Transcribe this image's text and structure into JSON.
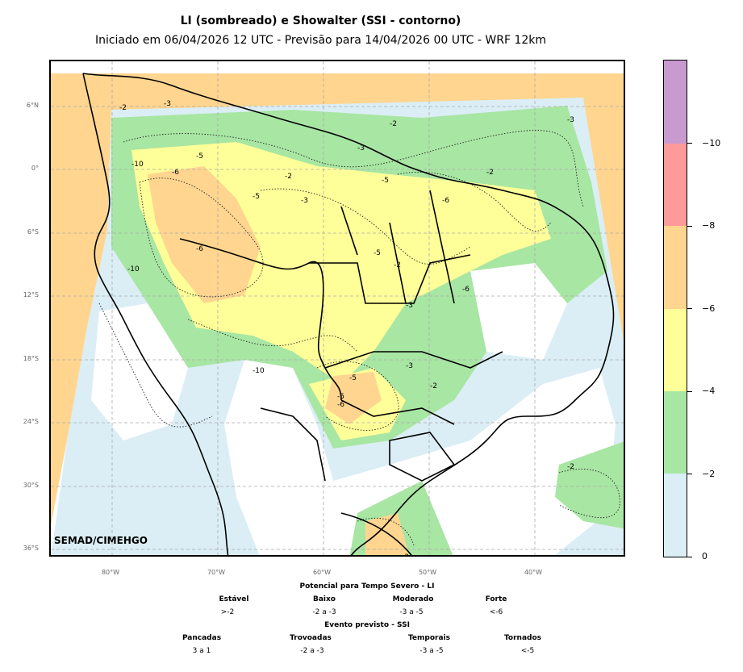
{
  "title": "LI (sombreado) e Showalter (SSI - contorno)",
  "subtitle": "Iniciado em 06/04/2026 12 UTC - Previsão para 14/04/2026 00 UTC - WRF 12km",
  "credit": "SEMAD/CIMEHGO",
  "lat_labels": [
    "6°N",
    "0°",
    "6°S",
    "12°S",
    "18°S",
    "24°S",
    "30°S",
    "36°S"
  ],
  "lon_labels": [
    "80°W",
    "70°W",
    "60°W",
    "50°W",
    "40°W"
  ],
  "colorbar": {
    "ticks": [
      "0",
      "−2",
      "−4",
      "−6",
      "−8",
      "−10"
    ],
    "colors": [
      "#dbeef5",
      "#a8e6a3",
      "#ffff99",
      "#ffd58f",
      "#ff9a9a",
      "#c99ad0"
    ]
  },
  "legend": {
    "li_title": "Potencial para Tempo Severo - LI",
    "li_categories": [
      {
        "label": "Estável",
        "value": ">-2"
      },
      {
        "label": "Baixo",
        "value": "-2 a -3"
      },
      {
        "label": "Moderado",
        "value": "-3 a -5"
      },
      {
        "label": "Forte",
        "value": "<-6"
      }
    ],
    "ssi_title": "Evento previsto - SSI",
    "ssi_categories": [
      {
        "label": "Pancadas",
        "value": "3 a 1"
      },
      {
        "label": "Trovoadas",
        "value": "-2 a -3"
      },
      {
        "label": "Temporais",
        "value": "-3 a -5"
      },
      {
        "label": "Tornados",
        "value": "<-5"
      }
    ]
  },
  "contour_labels": [
    "-2",
    "-3",
    "-5",
    "-6",
    "-10",
    "-2",
    "-3",
    "-5",
    "-6",
    "-2",
    "-3",
    "-5",
    "-6",
    "-10",
    "-2",
    "-3",
    "-5",
    "-2",
    "-3",
    "-6",
    "-5",
    "-2",
    "-3",
    "-10",
    "-5",
    "-6",
    "-2",
    "-3"
  ]
}
